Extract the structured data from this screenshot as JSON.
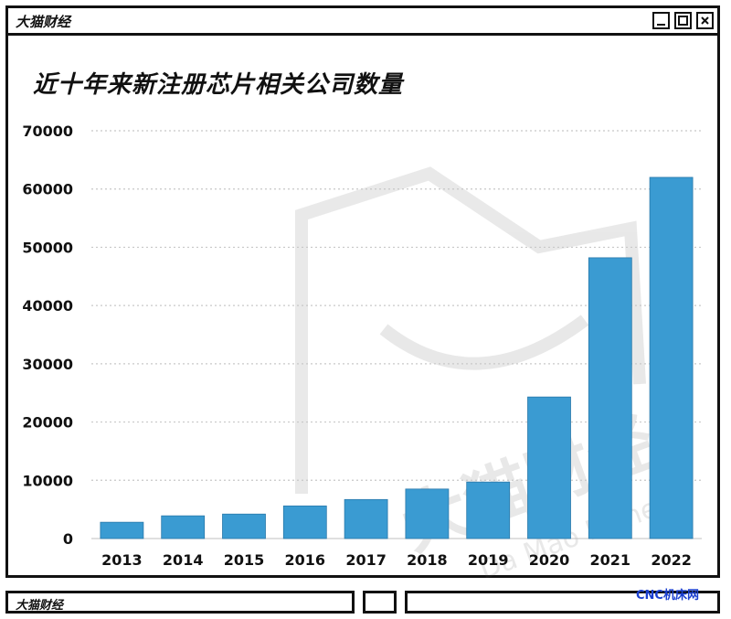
{
  "window": {
    "brand": "大猫财经",
    "buttons": [
      {
        "name": "minimize-button",
        "icon": "minimize-icon"
      },
      {
        "name": "maximize-button",
        "icon": "maximize-icon"
      },
      {
        "name": "close-button",
        "icon": "close-icon",
        "label": "x"
      }
    ]
  },
  "footer": {
    "brand": "大猫财经",
    "source_mark": "CNC机床网"
  },
  "watermark": {
    "text": "大猫财经",
    "subtext": "Da Mao Money"
  },
  "chart_data": {
    "type": "bar",
    "title": "近十年来新注册芯片相关公司数量",
    "xlabel": "",
    "ylabel": "",
    "categories": [
      "2013",
      "2014",
      "2015",
      "2016",
      "2017",
      "2018",
      "2019",
      "2020",
      "2021",
      "2022"
    ],
    "values": [
      2800,
      3900,
      4200,
      5600,
      6700,
      8500,
      9700,
      24300,
      48200,
      62000
    ],
    "ylim": [
      0,
      70000
    ],
    "yticks": [
      0,
      10000,
      20000,
      30000,
      40000,
      50000,
      60000,
      70000
    ],
    "bar_color": "#3a9bd2",
    "grid": true,
    "grid_style": "dotted"
  }
}
